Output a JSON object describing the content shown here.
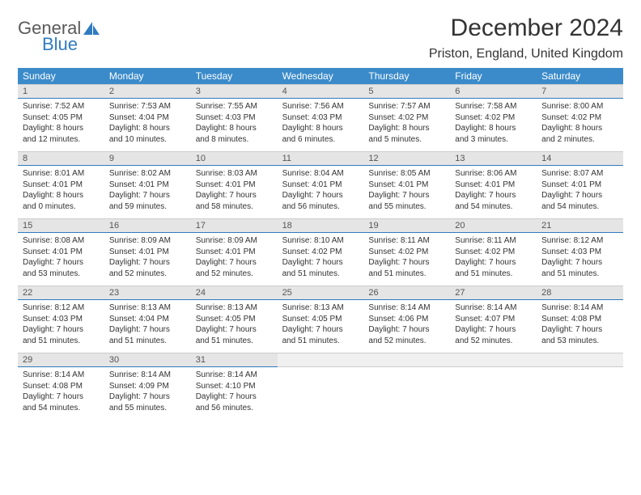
{
  "brand": {
    "word1": "General",
    "word2": "Blue"
  },
  "title": "December 2024",
  "location": "Priston, England, United Kingdom",
  "colors": {
    "header_bg": "#3b8bca",
    "header_text": "#ffffff",
    "daynum_bg": "#e5e5e5",
    "daynum_border_bottom": "#2f7bbf",
    "body_text": "#333333",
    "brand_gray": "#5a5a5a",
    "brand_blue": "#2f7bbf"
  },
  "weekdays": [
    "Sunday",
    "Monday",
    "Tuesday",
    "Wednesday",
    "Thursday",
    "Friday",
    "Saturday"
  ],
  "weeks": [
    [
      {
        "num": "1",
        "sunrise": "Sunrise: 7:52 AM",
        "sunset": "Sunset: 4:05 PM",
        "day1": "Daylight: 8 hours",
        "day2": "and 12 minutes."
      },
      {
        "num": "2",
        "sunrise": "Sunrise: 7:53 AM",
        "sunset": "Sunset: 4:04 PM",
        "day1": "Daylight: 8 hours",
        "day2": "and 10 minutes."
      },
      {
        "num": "3",
        "sunrise": "Sunrise: 7:55 AM",
        "sunset": "Sunset: 4:03 PM",
        "day1": "Daylight: 8 hours",
        "day2": "and 8 minutes."
      },
      {
        "num": "4",
        "sunrise": "Sunrise: 7:56 AM",
        "sunset": "Sunset: 4:03 PM",
        "day1": "Daylight: 8 hours",
        "day2": "and 6 minutes."
      },
      {
        "num": "5",
        "sunrise": "Sunrise: 7:57 AM",
        "sunset": "Sunset: 4:02 PM",
        "day1": "Daylight: 8 hours",
        "day2": "and 5 minutes."
      },
      {
        "num": "6",
        "sunrise": "Sunrise: 7:58 AM",
        "sunset": "Sunset: 4:02 PM",
        "day1": "Daylight: 8 hours",
        "day2": "and 3 minutes."
      },
      {
        "num": "7",
        "sunrise": "Sunrise: 8:00 AM",
        "sunset": "Sunset: 4:02 PM",
        "day1": "Daylight: 8 hours",
        "day2": "and 2 minutes."
      }
    ],
    [
      {
        "num": "8",
        "sunrise": "Sunrise: 8:01 AM",
        "sunset": "Sunset: 4:01 PM",
        "day1": "Daylight: 8 hours",
        "day2": "and 0 minutes."
      },
      {
        "num": "9",
        "sunrise": "Sunrise: 8:02 AM",
        "sunset": "Sunset: 4:01 PM",
        "day1": "Daylight: 7 hours",
        "day2": "and 59 minutes."
      },
      {
        "num": "10",
        "sunrise": "Sunrise: 8:03 AM",
        "sunset": "Sunset: 4:01 PM",
        "day1": "Daylight: 7 hours",
        "day2": "and 58 minutes."
      },
      {
        "num": "11",
        "sunrise": "Sunrise: 8:04 AM",
        "sunset": "Sunset: 4:01 PM",
        "day1": "Daylight: 7 hours",
        "day2": "and 56 minutes."
      },
      {
        "num": "12",
        "sunrise": "Sunrise: 8:05 AM",
        "sunset": "Sunset: 4:01 PM",
        "day1": "Daylight: 7 hours",
        "day2": "and 55 minutes."
      },
      {
        "num": "13",
        "sunrise": "Sunrise: 8:06 AM",
        "sunset": "Sunset: 4:01 PM",
        "day1": "Daylight: 7 hours",
        "day2": "and 54 minutes."
      },
      {
        "num": "14",
        "sunrise": "Sunrise: 8:07 AM",
        "sunset": "Sunset: 4:01 PM",
        "day1": "Daylight: 7 hours",
        "day2": "and 54 minutes."
      }
    ],
    [
      {
        "num": "15",
        "sunrise": "Sunrise: 8:08 AM",
        "sunset": "Sunset: 4:01 PM",
        "day1": "Daylight: 7 hours",
        "day2": "and 53 minutes."
      },
      {
        "num": "16",
        "sunrise": "Sunrise: 8:09 AM",
        "sunset": "Sunset: 4:01 PM",
        "day1": "Daylight: 7 hours",
        "day2": "and 52 minutes."
      },
      {
        "num": "17",
        "sunrise": "Sunrise: 8:09 AM",
        "sunset": "Sunset: 4:01 PM",
        "day1": "Daylight: 7 hours",
        "day2": "and 52 minutes."
      },
      {
        "num": "18",
        "sunrise": "Sunrise: 8:10 AM",
        "sunset": "Sunset: 4:02 PM",
        "day1": "Daylight: 7 hours",
        "day2": "and 51 minutes."
      },
      {
        "num": "19",
        "sunrise": "Sunrise: 8:11 AM",
        "sunset": "Sunset: 4:02 PM",
        "day1": "Daylight: 7 hours",
        "day2": "and 51 minutes."
      },
      {
        "num": "20",
        "sunrise": "Sunrise: 8:11 AM",
        "sunset": "Sunset: 4:02 PM",
        "day1": "Daylight: 7 hours",
        "day2": "and 51 minutes."
      },
      {
        "num": "21",
        "sunrise": "Sunrise: 8:12 AM",
        "sunset": "Sunset: 4:03 PM",
        "day1": "Daylight: 7 hours",
        "day2": "and 51 minutes."
      }
    ],
    [
      {
        "num": "22",
        "sunrise": "Sunrise: 8:12 AM",
        "sunset": "Sunset: 4:03 PM",
        "day1": "Daylight: 7 hours",
        "day2": "and 51 minutes."
      },
      {
        "num": "23",
        "sunrise": "Sunrise: 8:13 AM",
        "sunset": "Sunset: 4:04 PM",
        "day1": "Daylight: 7 hours",
        "day2": "and 51 minutes."
      },
      {
        "num": "24",
        "sunrise": "Sunrise: 8:13 AM",
        "sunset": "Sunset: 4:05 PM",
        "day1": "Daylight: 7 hours",
        "day2": "and 51 minutes."
      },
      {
        "num": "25",
        "sunrise": "Sunrise: 8:13 AM",
        "sunset": "Sunset: 4:05 PM",
        "day1": "Daylight: 7 hours",
        "day2": "and 51 minutes."
      },
      {
        "num": "26",
        "sunrise": "Sunrise: 8:14 AM",
        "sunset": "Sunset: 4:06 PM",
        "day1": "Daylight: 7 hours",
        "day2": "and 52 minutes."
      },
      {
        "num": "27",
        "sunrise": "Sunrise: 8:14 AM",
        "sunset": "Sunset: 4:07 PM",
        "day1": "Daylight: 7 hours",
        "day2": "and 52 minutes."
      },
      {
        "num": "28",
        "sunrise": "Sunrise: 8:14 AM",
        "sunset": "Sunset: 4:08 PM",
        "day1": "Daylight: 7 hours",
        "day2": "and 53 minutes."
      }
    ],
    [
      {
        "num": "29",
        "sunrise": "Sunrise: 8:14 AM",
        "sunset": "Sunset: 4:08 PM",
        "day1": "Daylight: 7 hours",
        "day2": "and 54 minutes."
      },
      {
        "num": "30",
        "sunrise": "Sunrise: 8:14 AM",
        "sunset": "Sunset: 4:09 PM",
        "day1": "Daylight: 7 hours",
        "day2": "and 55 minutes."
      },
      {
        "num": "31",
        "sunrise": "Sunrise: 8:14 AM",
        "sunset": "Sunset: 4:10 PM",
        "day1": "Daylight: 7 hours",
        "day2": "and 56 minutes."
      },
      {
        "empty": true
      },
      {
        "empty": true
      },
      {
        "empty": true
      },
      {
        "empty": true
      }
    ]
  ]
}
